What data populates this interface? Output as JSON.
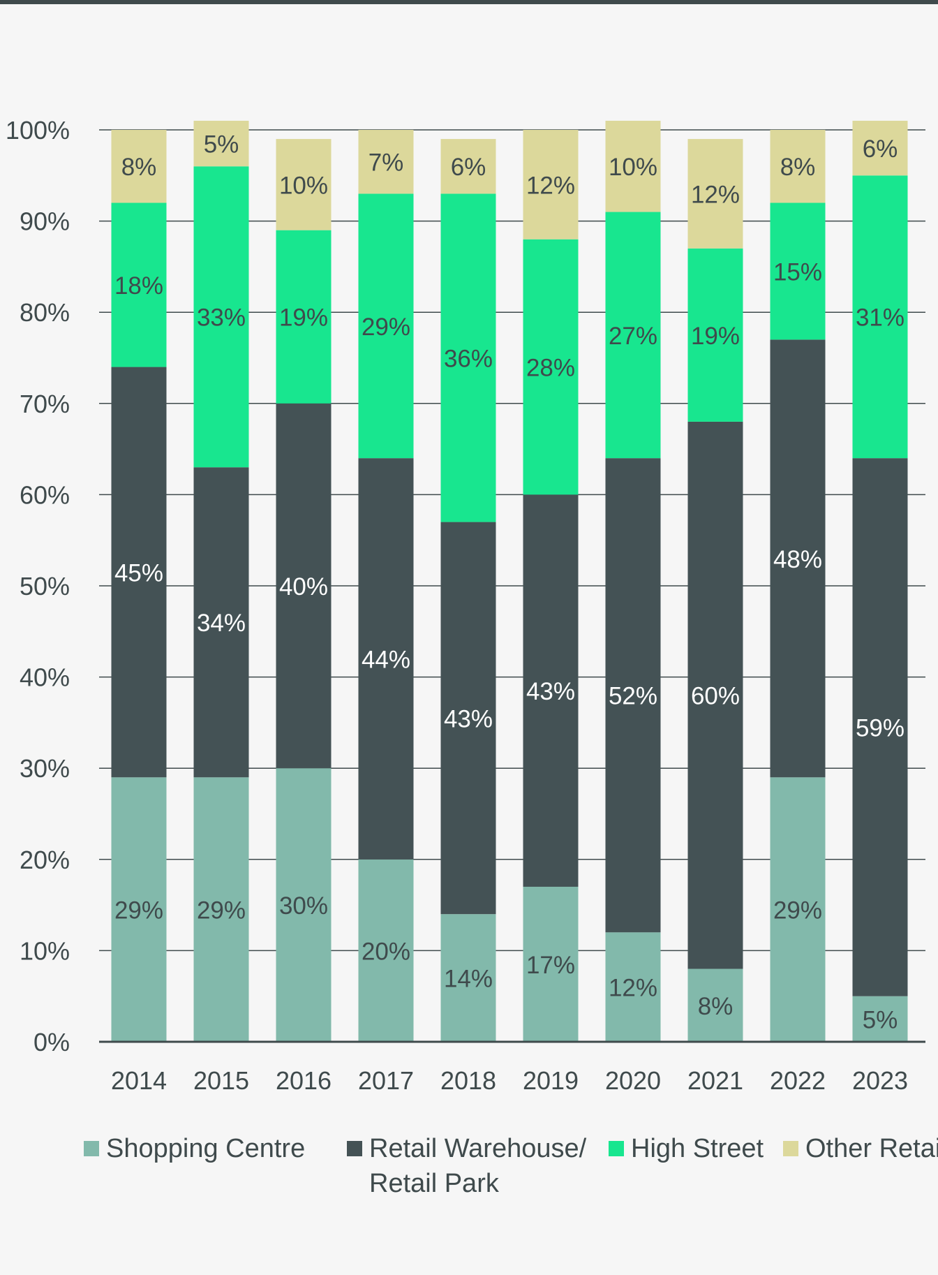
{
  "chart_data": {
    "type": "bar",
    "stacked": true,
    "categories": [
      "2014",
      "2015",
      "2016",
      "2017",
      "2018",
      "2019",
      "2020",
      "2021",
      "2022",
      "2023"
    ],
    "series": [
      {
        "name": "Shopping Centre",
        "color": "#82b9ab",
        "label_color": "#3f4a4c",
        "values": [
          29,
          29,
          30,
          20,
          14,
          17,
          12,
          8,
          29,
          5
        ]
      },
      {
        "name": "Retail Warehouse/\nRetail Park",
        "color": "#445255",
        "label_color": "#ffffff",
        "values": [
          45,
          34,
          40,
          44,
          43,
          43,
          52,
          60,
          48,
          59
        ]
      },
      {
        "name": "High Street",
        "color": "#18e68f",
        "label_color": "#3f4a4c",
        "values": [
          18,
          33,
          19,
          29,
          36,
          28,
          27,
          19,
          15,
          31
        ]
      },
      {
        "name": "Other Retail",
        "color": "#dcd89b",
        "label_color": "#3f4a4c",
        "values": [
          8,
          5,
          10,
          7,
          6,
          12,
          10,
          12,
          8,
          6
        ]
      }
    ],
    "yticks": [
      "0%",
      "10%",
      "20%",
      "30%",
      "40%",
      "50%",
      "60%",
      "70%",
      "80%",
      "90%",
      "100%"
    ],
    "ylim": [
      0,
      100
    ],
    "grid": true,
    "legend": "bottom"
  }
}
